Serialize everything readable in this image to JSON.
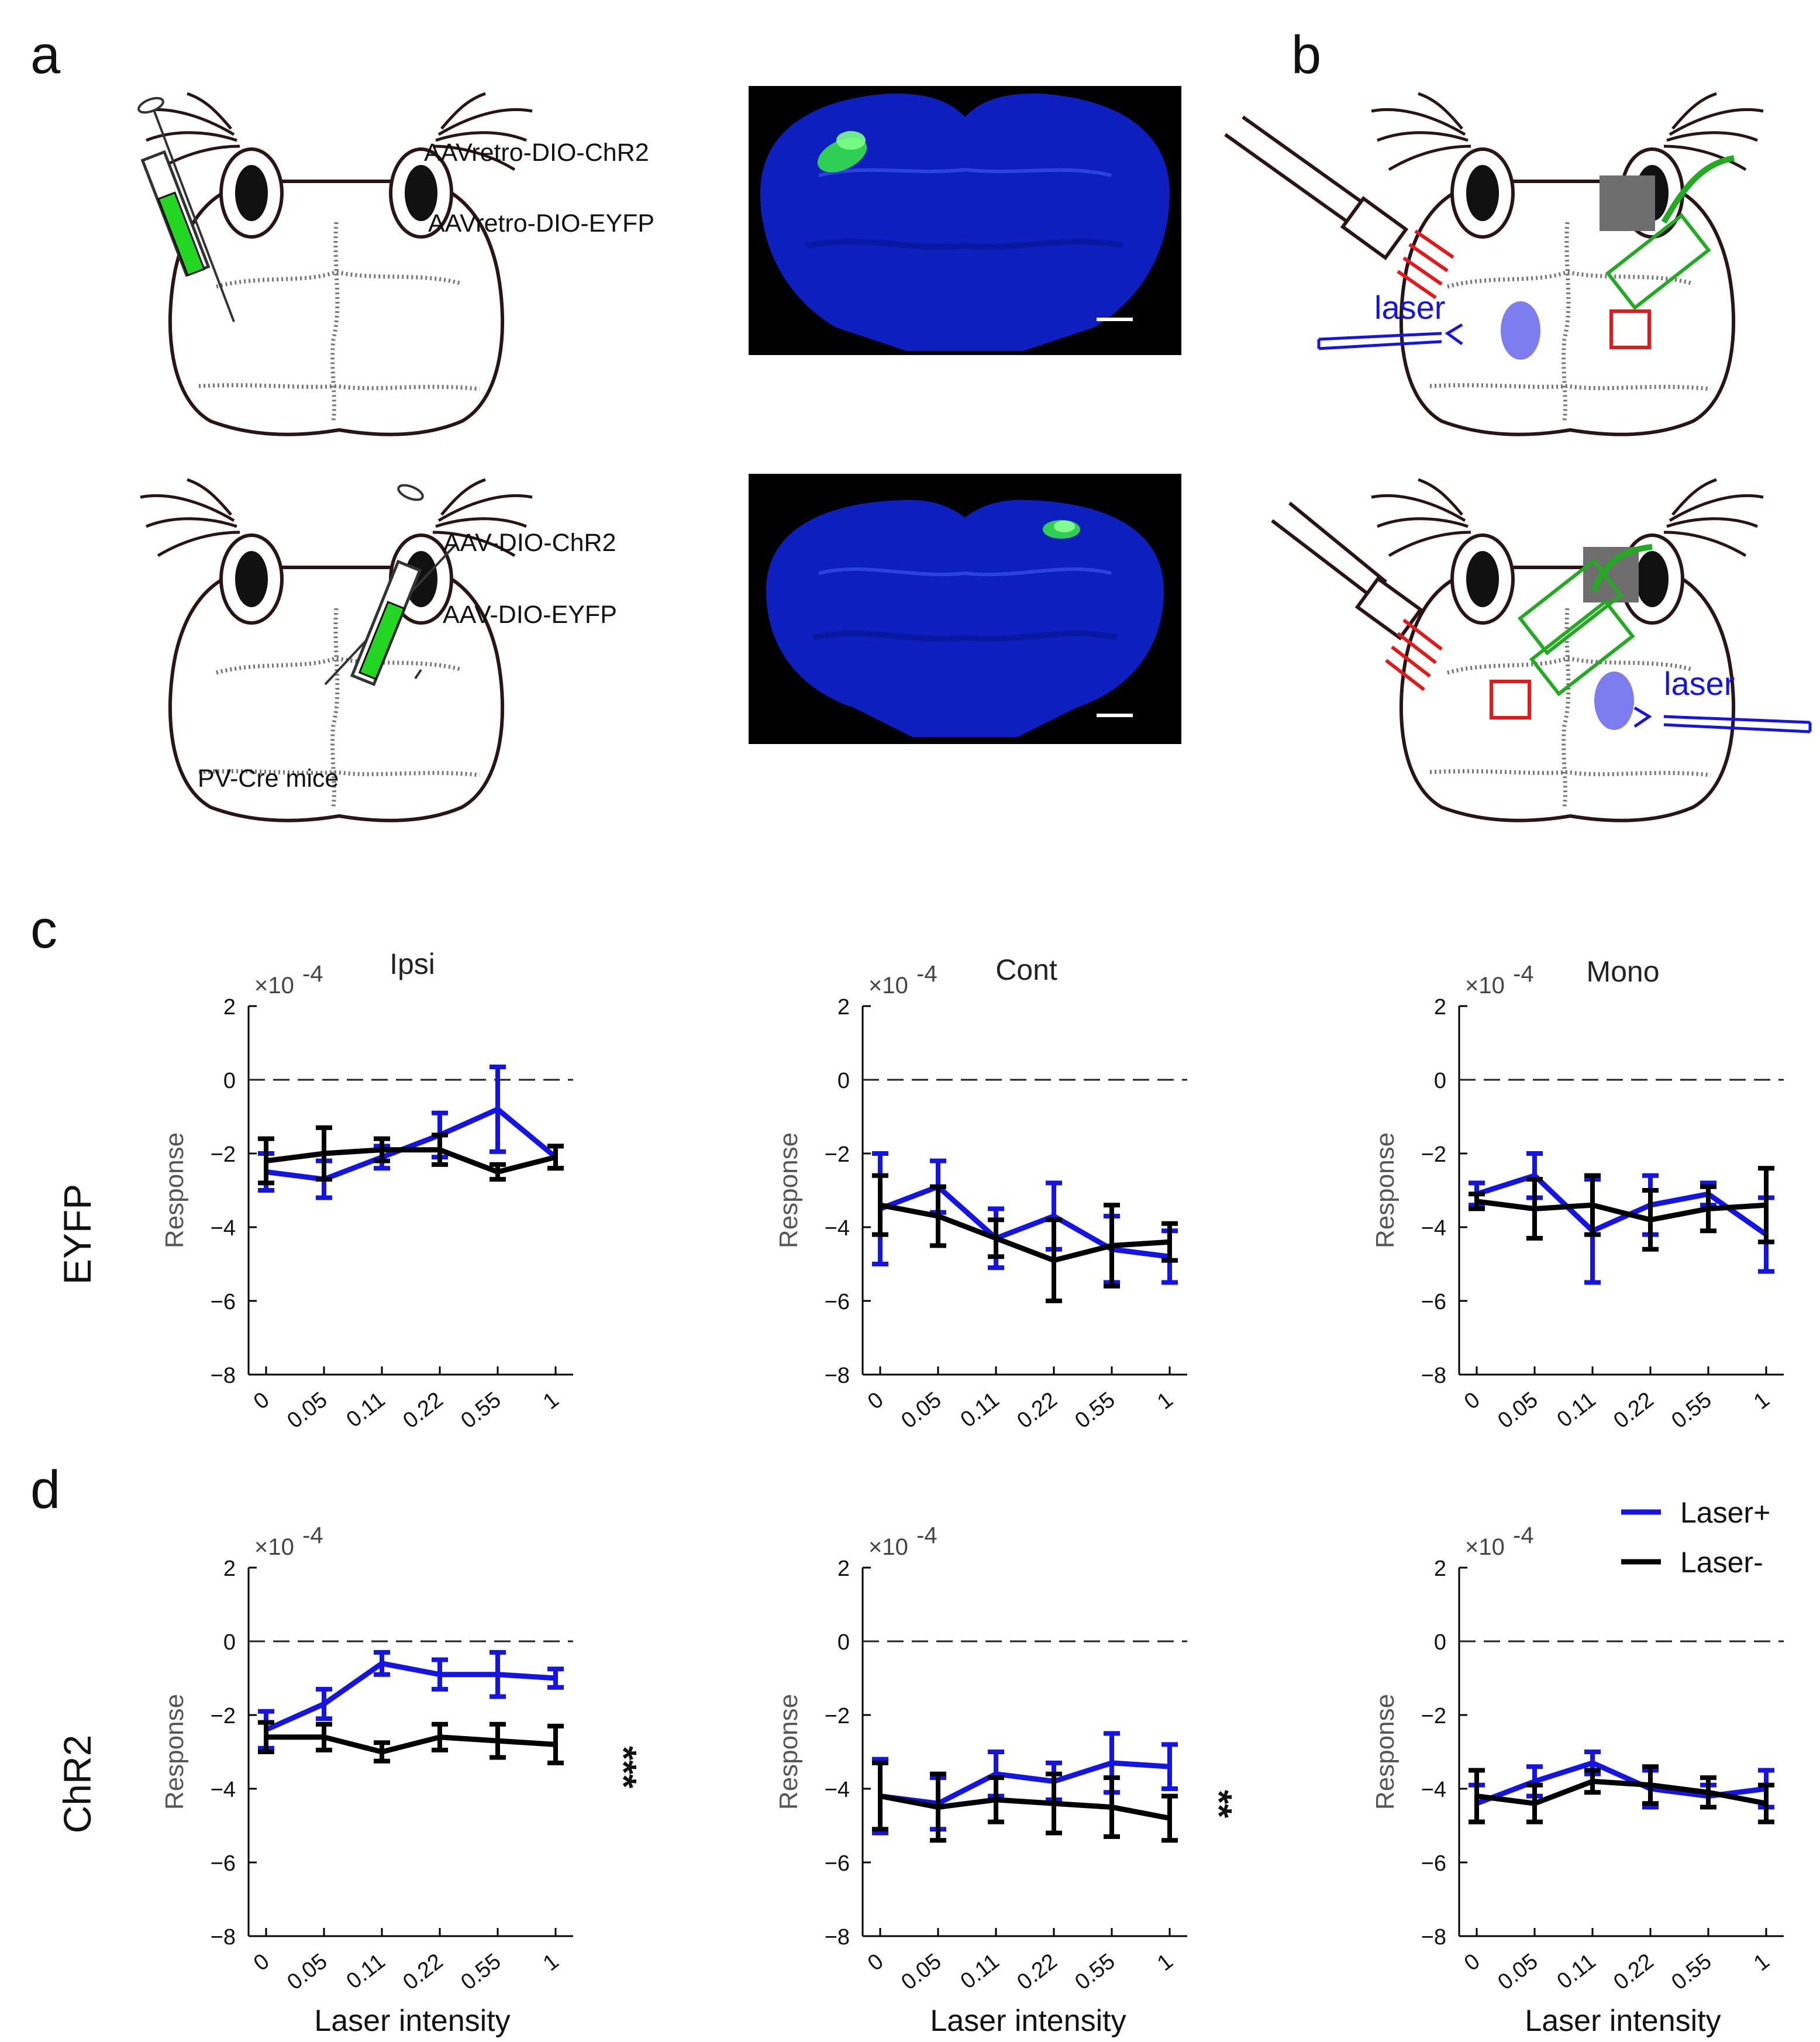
{
  "panel_labels": {
    "a": "a",
    "b": "b",
    "c": "c",
    "d": "d"
  },
  "panel_a": {
    "top_virus_1": "AAVretro-DIO-ChR2",
    "top_virus_2": "AAVretro-DIO-EYFP",
    "bottom_virus_1": "AAV-DIO-ChR2",
    "bottom_virus_2": "AAV-DIO-EYFP",
    "mouse_label": "PV-Cre mice"
  },
  "panel_b": {
    "laser_label_top": "laser",
    "laser_label_bottom": "laser"
  },
  "row_labels": {
    "c": "EYFP",
    "d": "ChR2"
  },
  "plot_titles": [
    "Ipsi",
    "Cont",
    "Mono"
  ],
  "x_label": "Laser intensity",
  "y_label": "Response",
  "y_exponent": "×10",
  "y_exponent_power": "-4",
  "legend": {
    "laser_plus": "Laser+",
    "laser_minus": "Laser-"
  },
  "significance": {
    "d_ipsi": "***",
    "d_cont": "**"
  },
  "colors": {
    "laser_plus": "#1414e6",
    "laser_minus": "#000000",
    "fluor_green": "#22d622",
    "red": "#e41a1a",
    "blue_spot": "#7d7df0",
    "gray": "#6e6e6e"
  },
  "chart_data": [
    {
      "type": "line",
      "panel": "c",
      "row": "EYFP",
      "title": "Ipsi",
      "categories": [
        "0",
        "0.05",
        "0.11",
        "0.22",
        "0.55",
        "1"
      ],
      "xlabel": "",
      "ylabel": "Response",
      "ylim": [
        -8,
        2
      ],
      "y_scale": "×10^-4",
      "series": [
        {
          "name": "Laser+",
          "values": [
            -2.5,
            -2.7,
            -2.1,
            -1.5,
            -0.8,
            -2.1
          ],
          "err": [
            0.5,
            0.5,
            0.3,
            0.6,
            1.15,
            0.3
          ]
        },
        {
          "name": "Laser-",
          "values": [
            -2.2,
            -2.0,
            -1.9,
            -1.9,
            -2.5,
            -2.1
          ],
          "err": [
            0.6,
            0.7,
            0.3,
            0.4,
            0.2,
            0.3
          ]
        }
      ]
    },
    {
      "type": "line",
      "panel": "c",
      "row": "EYFP",
      "title": "Cont",
      "categories": [
        "0",
        "0.05",
        "0.11",
        "0.22",
        "0.55",
        "1"
      ],
      "xlabel": "",
      "ylabel": "Response",
      "ylim": [
        -8,
        2
      ],
      "y_scale": "×10^-4",
      "series": [
        {
          "name": "Laser+",
          "values": [
            -3.5,
            -2.9,
            -4.3,
            -3.7,
            -4.6,
            -4.8
          ],
          "err": [
            1.5,
            0.7,
            0.8,
            0.9,
            0.9,
            0.7
          ]
        },
        {
          "name": "Laser-",
          "values": [
            -3.4,
            -3.7,
            -4.3,
            -4.9,
            -4.5,
            -4.4
          ],
          "err": [
            0.8,
            0.8,
            0.5,
            1.1,
            1.1,
            0.5
          ]
        }
      ]
    },
    {
      "type": "line",
      "panel": "c",
      "row": "EYFP",
      "title": "Mono",
      "categories": [
        "0",
        "0.05",
        "0.11",
        "0.22",
        "0.55",
        "1"
      ],
      "xlabel": "",
      "ylabel": "Response",
      "ylim": [
        -8,
        2
      ],
      "y_scale": "×10^-4",
      "series": [
        {
          "name": "Laser+",
          "values": [
            -3.1,
            -2.6,
            -4.1,
            -3.4,
            -3.1,
            -4.2
          ],
          "err": [
            0.3,
            0.6,
            1.4,
            0.8,
            0.3,
            1.0
          ]
        },
        {
          "name": "Laser-",
          "values": [
            -3.3,
            -3.5,
            -3.4,
            -3.8,
            -3.5,
            -3.4
          ],
          "err": [
            0.2,
            0.8,
            0.8,
            0.8,
            0.6,
            1.0
          ]
        }
      ]
    },
    {
      "type": "line",
      "panel": "d",
      "row": "ChR2",
      "title": "Ipsi",
      "categories": [
        "0",
        "0.05",
        "0.11",
        "0.22",
        "0.55",
        "1"
      ],
      "xlabel": "Laser intensity",
      "ylabel": "Response",
      "ylim": [
        -8,
        2
      ],
      "y_scale": "×10^-4",
      "series": [
        {
          "name": "Laser+",
          "values": [
            -2.4,
            -1.7,
            -0.6,
            -0.9,
            -0.9,
            -1.0
          ],
          "err": [
            0.5,
            0.4,
            0.3,
            0.4,
            0.6,
            0.25
          ]
        },
        {
          "name": "Laser-",
          "values": [
            -2.6,
            -2.6,
            -3.0,
            -2.6,
            -2.7,
            -2.8
          ],
          "err": [
            0.4,
            0.35,
            0.25,
            0.35,
            0.45,
            0.5
          ]
        }
      ]
    },
    {
      "type": "line",
      "panel": "d",
      "row": "ChR2",
      "title": "Cont",
      "categories": [
        "0",
        "0.05",
        "0.11",
        "0.22",
        "0.55",
        "1"
      ],
      "xlabel": "Laser intensity",
      "ylabel": "Response",
      "ylim": [
        -8,
        2
      ],
      "y_scale": "×10^-4",
      "series": [
        {
          "name": "Laser+",
          "values": [
            -4.2,
            -4.4,
            -3.6,
            -3.8,
            -3.3,
            -3.4
          ],
          "err": [
            1.0,
            0.7,
            0.6,
            0.5,
            0.8,
            0.6
          ]
        },
        {
          "name": "Laser-",
          "values": [
            -4.2,
            -4.5,
            -4.3,
            -4.4,
            -4.5,
            -4.8
          ],
          "err": [
            0.9,
            0.9,
            0.6,
            0.8,
            0.8,
            0.6
          ]
        }
      ]
    },
    {
      "type": "line",
      "panel": "d",
      "row": "ChR2",
      "title": "Mono",
      "categories": [
        "0",
        "0.05",
        "0.11",
        "0.22",
        "0.55",
        "1"
      ],
      "xlabel": "Laser intensity",
      "ylabel": "Response",
      "ylim": [
        -8,
        2
      ],
      "y_scale": "×10^-4",
      "series": [
        {
          "name": "Laser+",
          "values": [
            -4.4,
            -3.8,
            -3.3,
            -4.0,
            -4.2,
            -4.0
          ],
          "err": [
            0.5,
            0.4,
            0.3,
            0.5,
            0.3,
            0.5
          ]
        },
        {
          "name": "Laser-",
          "values": [
            -4.2,
            -4.4,
            -3.8,
            -3.9,
            -4.1,
            -4.4
          ],
          "err": [
            0.7,
            0.5,
            0.3,
            0.5,
            0.4,
            0.5
          ]
        }
      ]
    }
  ]
}
